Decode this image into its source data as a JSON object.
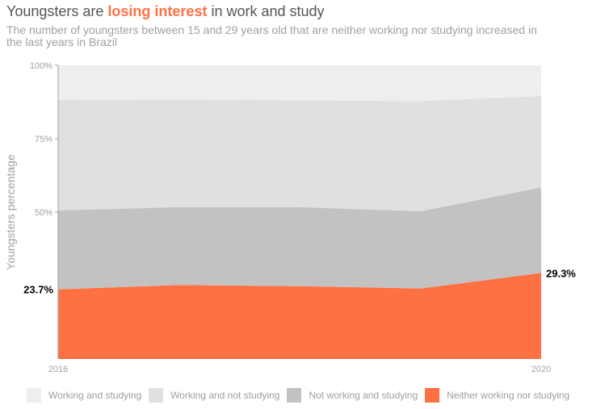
{
  "title": {
    "pre": "Youngsters are ",
    "highlight": "losing interest",
    "post": " in work and study"
  },
  "subtitle": "The number of youngsters between 15 and 29 years old that are neither working nor studying increased in the last years in Brazil",
  "colors": {
    "highlight": "#ff7043",
    "working_and_studying": "#eeeeee",
    "working_and_not_studying": "#e0e0e0",
    "not_working_and_studying": "#c2c2c2",
    "neither": "#ff7043",
    "axis_text": "#a0a0a0"
  },
  "chart_data": {
    "type": "area",
    "stacked": true,
    "x": [
      2016,
      2017,
      2018,
      2019,
      2020
    ],
    "xticks": [
      "2016",
      "2020"
    ],
    "ylabel": "Youngsters percentage",
    "yticks": [
      "100%",
      "75%",
      "50%"
    ],
    "ylim": [
      0,
      100
    ],
    "grid": false,
    "legend_position": "bottom",
    "series": [
      {
        "name": "Neither working nor studying",
        "values": [
          23.7,
          25.2,
          24.8,
          24.0,
          29.3
        ]
      },
      {
        "name": "Not working and studying",
        "values": [
          26.9,
          26.5,
          26.9,
          26.3,
          29.1
        ]
      },
      {
        "name": "Working and not studying",
        "values": [
          37.6,
          36.6,
          36.4,
          37.5,
          31.2
        ]
      },
      {
        "name": "Working and studying",
        "values": [
          11.8,
          11.7,
          11.9,
          12.2,
          10.4
        ]
      }
    ],
    "annotations": [
      {
        "series": "Neither working nor studying",
        "x": 2016,
        "label": "23.7%"
      },
      {
        "series": "Neither working nor studying",
        "x": 2020,
        "label": "29.3%"
      }
    ]
  },
  "legend": [
    {
      "label": "Working and studying",
      "color": "#eeeeee"
    },
    {
      "label": "Working and not studying",
      "color": "#e0e0e0"
    },
    {
      "label": "Not working and studying",
      "color": "#c2c2c2"
    },
    {
      "label": "Neither working nor studying",
      "color": "#ff7043"
    }
  ]
}
